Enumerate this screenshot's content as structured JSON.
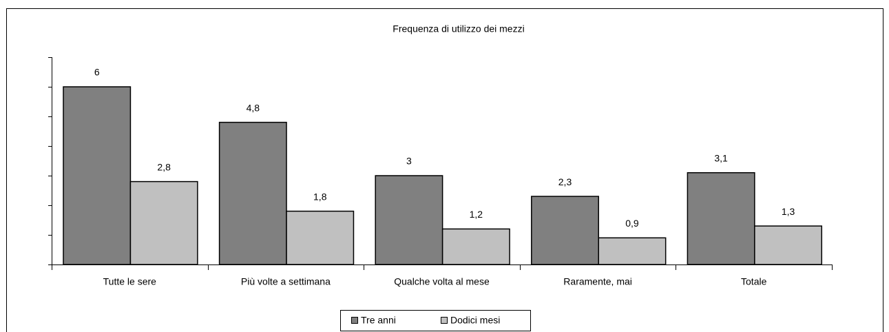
{
  "chart_data": {
    "type": "bar",
    "title": "Frequenza di utilizzo dei mezzi",
    "categories": [
      "Tutte le sere",
      "Più volte a settimana",
      "Qualche volta al mese",
      "Raramente, mai",
      "Totale"
    ],
    "series": [
      {
        "name": "Tre anni",
        "color": "#808080",
        "values": [
          6,
          4.8,
          3,
          2.3,
          3.1
        ],
        "value_labels": [
          "6",
          "4,8",
          "3",
          "2,3",
          "3,1"
        ]
      },
      {
        "name": "Dodici mesi",
        "color": "#c0c0c0",
        "values": [
          2.8,
          1.8,
          1.2,
          0.9,
          1.3
        ],
        "value_labels": [
          "2,8",
          "1,8",
          "1,2",
          "0,9",
          "1,3"
        ]
      }
    ],
    "ylim": [
      0,
      7
    ],
    "yticks": [
      0,
      1,
      2,
      3,
      4,
      5,
      6,
      7
    ],
    "legend": "bottom"
  }
}
